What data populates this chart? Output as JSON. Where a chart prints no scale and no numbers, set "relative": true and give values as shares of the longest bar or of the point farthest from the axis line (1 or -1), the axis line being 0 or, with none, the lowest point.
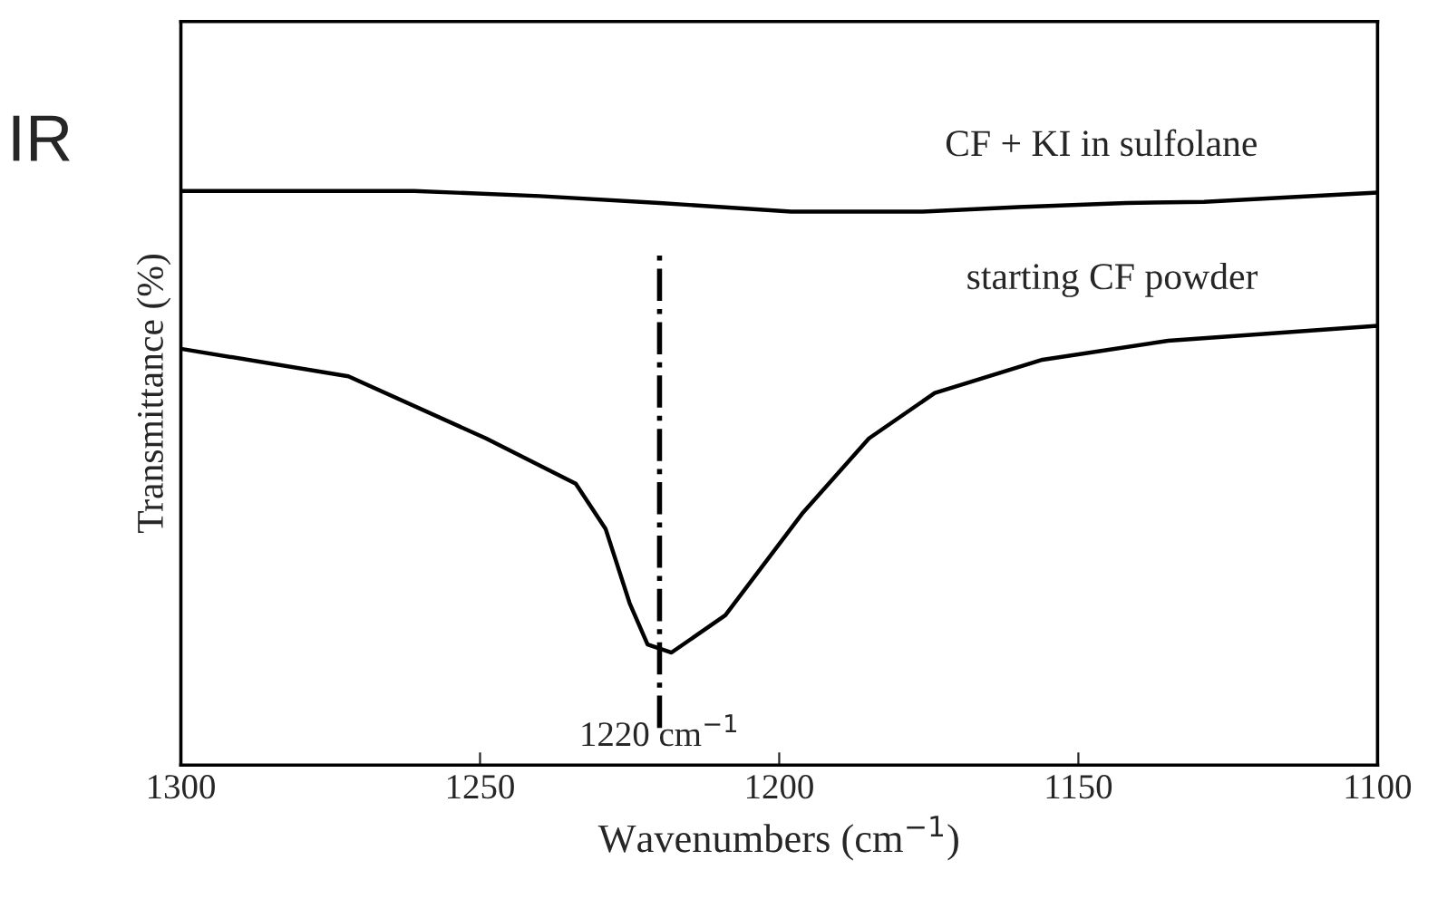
{
  "chart_data": {
    "type": "line",
    "relative": true,
    "xlabel": "Wavenumbers (cm$^{−1}$)",
    "ylabel": "Transmittance (%)",
    "xlim": [
      1300,
      1100
    ],
    "xticks": [
      1300,
      1250,
      1200,
      1150,
      1100
    ],
    "grid": false,
    "legend": false,
    "marker": "none",
    "series": [
      {
        "name": "CF + KI in sulfolane",
        "color": "#000000",
        "x": [
          1300,
          1261,
          1240,
          1220,
          1198,
          1176,
          1160,
          1142,
          1129,
          1115,
          1100
        ],
        "values": [
          1.0,
          1.0,
          0.991,
          0.979,
          0.964,
          0.964,
          0.972,
          0.979,
          0.981,
          0.989,
          0.997
        ]
      },
      {
        "name": "starting CF powder",
        "color": "#000000",
        "x": [
          1300,
          1272,
          1249,
          1234,
          1229,
          1225,
          1222,
          1218,
          1209,
          1196,
          1185,
          1174,
          1156,
          1135,
          1100
        ],
        "values": [
          0.725,
          0.677,
          0.569,
          0.49,
          0.411,
          0.282,
          0.21,
          0.196,
          0.261,
          0.44,
          0.569,
          0.648,
          0.706,
          0.739,
          0.765
        ]
      }
    ],
    "ref_lines": [
      {
        "axis": "x",
        "value": 1220,
        "label": "1220 cm$^{−1}$",
        "color": "#000000"
      }
    ],
    "annotations": [
      "IR"
    ]
  }
}
